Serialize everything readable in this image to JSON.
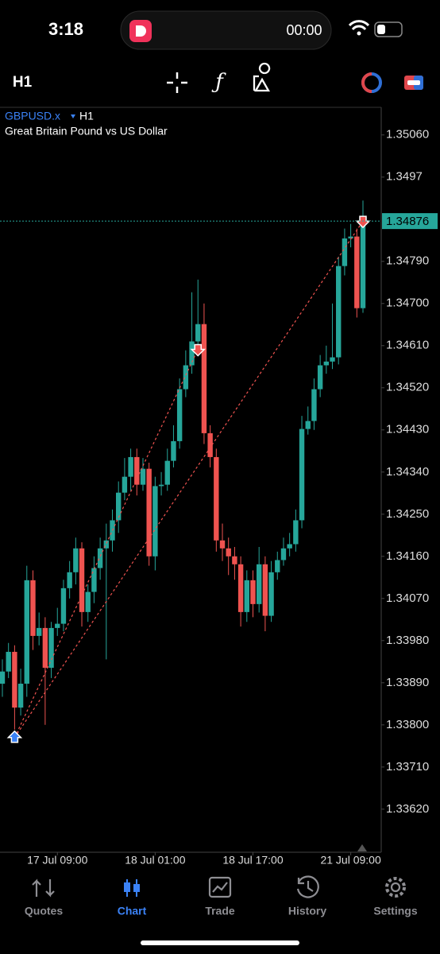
{
  "status_bar": {
    "time": "3:18",
    "recording": "00:00"
  },
  "toolbar": {
    "timeframe": "H1"
  },
  "chart_data": {
    "type": "candlestick",
    "symbol": "GBPUSD.x",
    "timeframe": "H1",
    "subtitle": "Great Britain Pound vs US Dollar",
    "categories": [
      null,
      null,
      null,
      null,
      null,
      null,
      null,
      null,
      null,
      "17 Jul 09:00",
      null,
      null,
      null,
      null,
      null,
      null,
      null,
      null,
      null,
      null,
      null,
      null,
      null,
      null,
      null,
      "18 Jul 01:00",
      null,
      null,
      null,
      null,
      null,
      null,
      null,
      null,
      null,
      null,
      null,
      null,
      null,
      null,
      null,
      "18 Jul 17:00",
      null,
      null,
      null,
      null,
      null,
      null,
      null,
      null,
      null,
      null,
      null,
      null,
      null,
      null,
      null,
      "21 Jul 09:00",
      null,
      null
    ],
    "open": [
      1.33888,
      1.33914,
      1.33956,
      1.33837,
      1.33888,
      1.34109,
      1.3399,
      1.34007,
      1.33922,
      1.34007,
      1.34016,
      1.34092,
      1.34126,
      1.34177,
      1.34041,
      1.34084,
      1.34135,
      1.34177,
      1.34194,
      1.34237,
      1.34296,
      1.3433,
      1.34372,
      1.34313,
      1.34347,
      1.3416,
      1.3431,
      1.34313,
      1.34364,
      1.34406,
      1.34517,
      1.34568,
      1.34619,
      1.34656,
      1.34423,
      1.34372,
      1.34194,
      1.34177,
      1.3416,
      1.34143,
      1.34041,
      1.34109,
      1.34058,
      1.34143,
      1.34033,
      1.34126,
      1.34152,
      1.34177,
      1.34186,
      1.34237,
      1.34432,
      1.34449,
      1.34517,
      1.34568,
      1.34576,
      1.34585,
      1.3478,
      1.34839,
      1.34843,
      1.3469
    ],
    "high": [
      1.3394,
      1.33975,
      1.3397,
      1.3392,
      1.3414,
      1.3413,
      1.3404,
      1.3403,
      1.3402,
      1.3405,
      1.3411,
      1.3415,
      1.342,
      1.3419,
      1.341,
      1.3416,
      1.342,
      1.3423,
      1.3426,
      1.3432,
      1.3437,
      1.3439,
      1.3439,
      1.3437,
      1.3436,
      1.3433,
      1.3434,
      1.3439,
      1.3444,
      1.3454,
      1.346,
      1.34724,
      1.34751,
      1.347,
      1.3444,
      1.3439,
      1.3423,
      1.342,
      1.3418,
      1.3416,
      1.3413,
      1.3413,
      1.3418,
      1.3416,
      1.3415,
      1.3417,
      1.342,
      1.3421,
      1.3426,
      1.3446,
      1.3448,
      1.3454,
      1.3459,
      1.3461,
      1.347,
      1.348,
      1.3486,
      1.3487,
      1.3486,
      1.3492
    ],
    "low": [
      1.3386,
      1.339,
      1.3379,
      1.3382,
      1.3386,
      1.3396,
      1.3397,
      1.338,
      1.339,
      1.3399,
      1.34,
      1.3407,
      1.341,
      1.3401,
      1.3402,
      1.3406,
      1.3411,
      1.3394,
      1.3417,
      1.3421,
      1.3428,
      1.343,
      1.3429,
      1.343,
      1.3414,
      1.3413,
      1.3429,
      1.343,
      1.3435,
      1.3439,
      1.345,
      1.3455,
      1.346,
      1.344,
      1.3435,
      1.3417,
      1.3415,
      1.3412,
      1.3411,
      1.3401,
      1.3402,
      1.3403,
      1.3404,
      1.34,
      1.3402,
      1.3411,
      1.3414,
      1.3416,
      1.3417,
      1.3422,
      1.3442,
      1.3443,
      1.345,
      1.3455,
      1.3456,
      1.3457,
      1.3476,
      1.3482,
      1.3467,
      1.3468
    ],
    "close": [
      1.33914,
      1.33956,
      1.33837,
      1.33888,
      1.34109,
      1.3399,
      1.34007,
      1.33922,
      1.34007,
      1.34016,
      1.34092,
      1.34126,
      1.34177,
      1.34041,
      1.34084,
      1.34135,
      1.34177,
      1.34194,
      1.34237,
      1.34296,
      1.3433,
      1.34372,
      1.34313,
      1.34347,
      1.3416,
      1.3431,
      1.34313,
      1.34364,
      1.34406,
      1.34517,
      1.34568,
      1.34619,
      1.34656,
      1.34423,
      1.34372,
      1.34194,
      1.34177,
      1.3416,
      1.34143,
      1.34041,
      1.34109,
      1.34058,
      1.34143,
      1.34033,
      1.34126,
      1.34152,
      1.34177,
      1.34186,
      1.34237,
      1.34432,
      1.34449,
      1.34517,
      1.34568,
      1.34576,
      1.34585,
      1.3478,
      1.34839,
      1.34843,
      1.3469,
      1.34876
    ],
    "up_color": "#26a69a",
    "down_color": "#ef5350",
    "ylim": [
      1.33528,
      1.35119
    ],
    "yticks": [
      {
        "value": 1.3506,
        "label": "1.35060"
      },
      1.3497,
      {
        "value": 1.3479,
        "label": "1.34790"
      },
      {
        "value": 1.347,
        "label": "1.34700"
      },
      {
        "value": 1.3461,
        "label": "1.34610"
      },
      {
        "value": 1.3452,
        "label": "1.34520"
      },
      {
        "value": 1.3443,
        "label": "1.34430"
      },
      {
        "value": 1.3434,
        "label": "1.34340"
      },
      {
        "value": 1.3425,
        "label": "1.34250"
      },
      {
        "value": 1.3416,
        "label": "1.34160"
      },
      {
        "value": 1.3407,
        "label": "1.34070"
      },
      {
        "value": 1.3398,
        "label": "1.33980"
      },
      {
        "value": 1.3389,
        "label": "1.33890"
      },
      {
        "value": 1.338,
        "label": "1.33800"
      },
      {
        "value": 1.3371,
        "label": "1.33710"
      },
      {
        "value": 1.3362,
        "label": "1.33620"
      }
    ],
    "current_price": 1.34876,
    "markers": [
      {
        "side": "buy",
        "index": 2,
        "price": 1.33773
      },
      {
        "side": "sell",
        "index": 32,
        "price": 1.34602
      },
      {
        "side": "sell",
        "index": 59,
        "price": 1.34876
      }
    ]
  },
  "tab_bar": {
    "tabs": [
      "Quotes",
      "Chart",
      "Trade",
      "History",
      "Settings"
    ],
    "active": 1
  }
}
